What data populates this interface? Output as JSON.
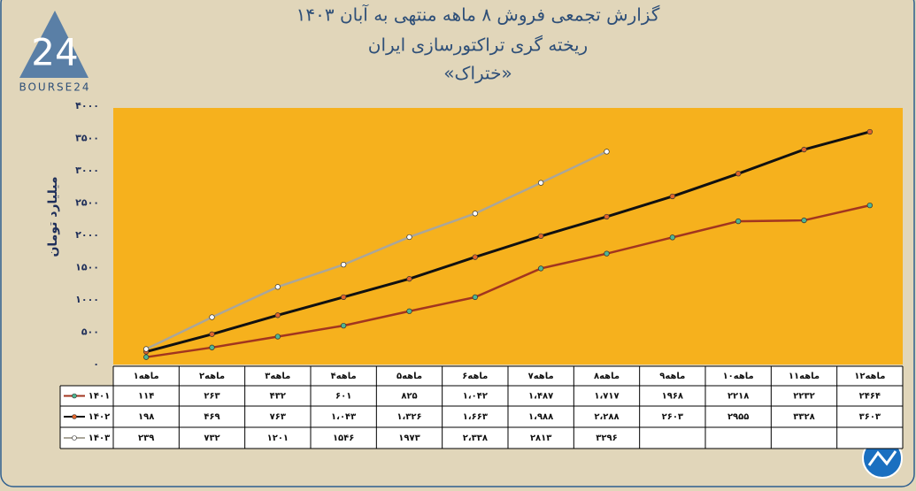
{
  "chart_data": {
    "type": "line",
    "title": "گزارش تجمعی فروش ۸ ماهه منتهی به آبان ۱۴۰۳",
    "subtitle": "ریخته گری تراکتورسازی ایران",
    "subtitle2": "«ختراک»",
    "y_label": "میلیارد تومان",
    "logo": "BOURSE24",
    "logo_number": "24",
    "categories": [
      "۱ماهه",
      "۲ماهه",
      "۳ماهه",
      "۴ماهه",
      "۵ماهه",
      "۶ماهه",
      "۷ماهه",
      "۸ماهه",
      "۹ماهه",
      "۱۰ماهه",
      "۱۱ماهه",
      "۱۲ماهه"
    ],
    "ylim": [
      0,
      4000
    ],
    "yticks": [
      {
        "value": 0,
        "label": "۰"
      },
      {
        "value": 500,
        "label": "۵۰۰"
      },
      {
        "value": 1000,
        "label": "۱۰۰۰"
      },
      {
        "value": 1500,
        "label": "۱۵۰۰"
      },
      {
        "value": 2000,
        "label": "۲۰۰۰"
      },
      {
        "value": 2500,
        "label": "۲۵۰۰"
      },
      {
        "value": 3000,
        "label": "۳۰۰۰"
      },
      {
        "value": 3500,
        "label": "۳۵۰۰"
      },
      {
        "value": 4000,
        "label": "۴۰۰۰"
      }
    ],
    "grid": false,
    "series": [
      {
        "name": "۱۴۰۱",
        "color": "#a2351f",
        "marker_color": "#4fb592",
        "values": [
          114,
          263,
          432,
          601,
          825,
          1042,
          1487,
          1717,
          1968,
          2218,
          2232,
          2464
        ],
        "value_labels": [
          "۱۱۴",
          "۲۶۳",
          "۴۳۲",
          "۶۰۱",
          "۸۲۵",
          "۱،۰۴۲",
          "۱،۴۸۷",
          "۱،۷۱۷",
          "۱۹۶۸",
          "۲۲۱۸",
          "۲۲۳۲",
          "۲۴۶۴"
        ]
      },
      {
        "name": "۱۴۰۲",
        "color": "#111111",
        "marker_color": "#e0632a",
        "values": [
          198,
          469,
          763,
          1043,
          1326,
          1663,
          1988,
          2288,
          2603,
          2955,
          3328,
          3603
        ],
        "value_labels": [
          "۱۹۸",
          "۴۶۹",
          "۷۶۳",
          "۱،۰۴۳",
          "۱،۳۲۶",
          "۱،۶۶۳",
          "۱،۹۸۸",
          "۲،۲۸۸",
          "۲۶۰۳",
          "۲۹۵۵",
          "۳۳۲۸",
          "۳۶۰۳"
        ]
      },
      {
        "name": "۱۴۰۳",
        "color": "#aaa69a",
        "marker_color": "#ffffff",
        "values": [
          239,
          732,
          1201,
          1546,
          1973,
          2338,
          2813,
          3296,
          null,
          null,
          null,
          null
        ],
        "value_labels": [
          "۲۳۹",
          "۷۳۲",
          "۱۲۰۱",
          "۱۵۴۶",
          "۱۹۷۳",
          "۲،۳۳۸",
          "۲۸۱۳",
          "۳۲۹۶",
          null,
          null,
          null,
          null
        ]
      }
    ]
  }
}
